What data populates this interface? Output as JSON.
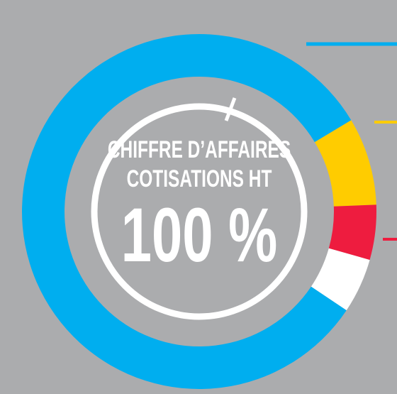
{
  "chart_data": {
    "type": "donut",
    "values": [
      8,
      5,
      5,
      82
    ],
    "colors": [
      "#ffcc00",
      "#ee1c3f",
      "#ffffff",
      "#00aeef"
    ],
    "startangle": 59,
    "title_lines": [
      "CHIFFRE D’AFFAIRES",
      "COTISATIONS HT"
    ],
    "center_label": "100 %"
  }
}
